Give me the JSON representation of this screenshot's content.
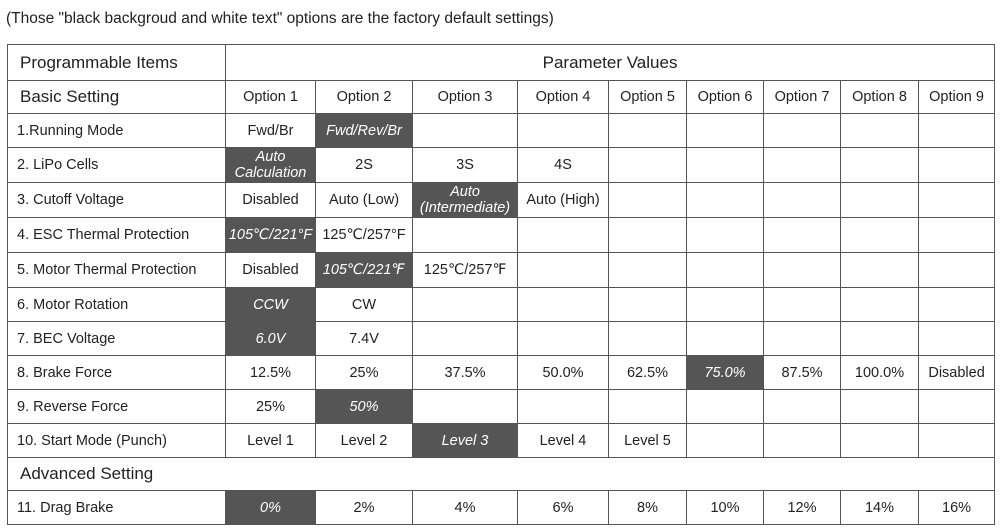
{
  "note": "(Those \"black backgroud and white text\" options are the factory default settings)",
  "header": {
    "items_label": "Programmable Items",
    "values_label": "Parameter Values"
  },
  "basic": {
    "label": "Basic Setting",
    "options": [
      "Option 1",
      "Option 2",
      "Option 3",
      "Option 4",
      "Option 5",
      "Option 6",
      "Option 7",
      "Option 8",
      "Option 9"
    ]
  },
  "advanced": {
    "label": "Advanced Setting"
  },
  "rows": [
    {
      "name": "1.Running Mode",
      "values": [
        [
          "Fwd/Br"
        ],
        [
          "Fwd/Rev/Br"
        ],
        [],
        [],
        [],
        [],
        [],
        [],
        []
      ],
      "default": 1
    },
    {
      "name": "2. LiPo Cells",
      "values": [
        [
          "Auto",
          "Calculation"
        ],
        [
          "2S"
        ],
        [
          "3S"
        ],
        [
          "4S"
        ],
        [],
        [],
        [],
        [],
        []
      ],
      "default": 0
    },
    {
      "name": "3. Cutoff Voltage",
      "values": [
        [
          "Disabled"
        ],
        [
          "Auto (Low)"
        ],
        [
          "Auto",
          "(Intermediate)"
        ],
        [
          "Auto (High)"
        ],
        [],
        [],
        [],
        [],
        []
      ],
      "default": 2
    },
    {
      "name": "4. ESC Thermal Protection",
      "values": [
        [
          "105℃/221°F"
        ],
        [
          "125℃/257°F"
        ],
        [],
        [],
        [],
        [],
        [],
        [],
        []
      ],
      "default": 0
    },
    {
      "name": "5. Motor Thermal Protection",
      "values": [
        [
          "Disabled"
        ],
        [
          "105℃/221℉"
        ],
        [
          "125℃/257℉"
        ],
        [],
        [],
        [],
        [],
        [],
        []
      ],
      "default": 1
    },
    {
      "name": "6. Motor Rotation",
      "values": [
        [
          "CCW"
        ],
        [
          "CW"
        ],
        [],
        [],
        [],
        [],
        [],
        [],
        []
      ],
      "default": 0
    },
    {
      "name": "7. BEC Voltage",
      "values": [
        [
          "6.0V"
        ],
        [
          "7.4V"
        ],
        [],
        [],
        [],
        [],
        [],
        [],
        []
      ],
      "default": 0
    },
    {
      "name": "8. Brake Force",
      "values": [
        [
          "12.5%"
        ],
        [
          "25%"
        ],
        [
          "37.5%"
        ],
        [
          "50.0%"
        ],
        [
          "62.5%"
        ],
        [
          "75.0%"
        ],
        [
          "87.5%"
        ],
        [
          "100.0%"
        ],
        [
          "Disabled"
        ]
      ],
      "default": 5
    },
    {
      "name": "9. Reverse Force",
      "values": [
        [
          "25%"
        ],
        [
          "50%"
        ],
        [],
        [],
        [],
        [],
        [],
        [],
        []
      ],
      "default": 1
    },
    {
      "name": "10. Start Mode (Punch)",
      "values": [
        [
          "Level 1"
        ],
        [
          "Level 2"
        ],
        [
          "Level 3"
        ],
        [
          "Level 4"
        ],
        [
          "Level 5"
        ],
        [],
        [],
        [],
        []
      ],
      "default": 2
    }
  ],
  "advanced_rows": [
    {
      "name": "11. Drag Brake",
      "values": [
        [
          "0%"
        ],
        [
          "2%"
        ],
        [
          "4%"
        ],
        [
          "6%"
        ],
        [
          "8%"
        ],
        [
          "10%"
        ],
        [
          "12%"
        ],
        [
          "14%"
        ],
        [
          "16%"
        ]
      ],
      "default": 0
    }
  ],
  "colors": {
    "default_cell_bg": "#555555",
    "default_cell_text": "#ffffff",
    "grid": "#555555"
  }
}
